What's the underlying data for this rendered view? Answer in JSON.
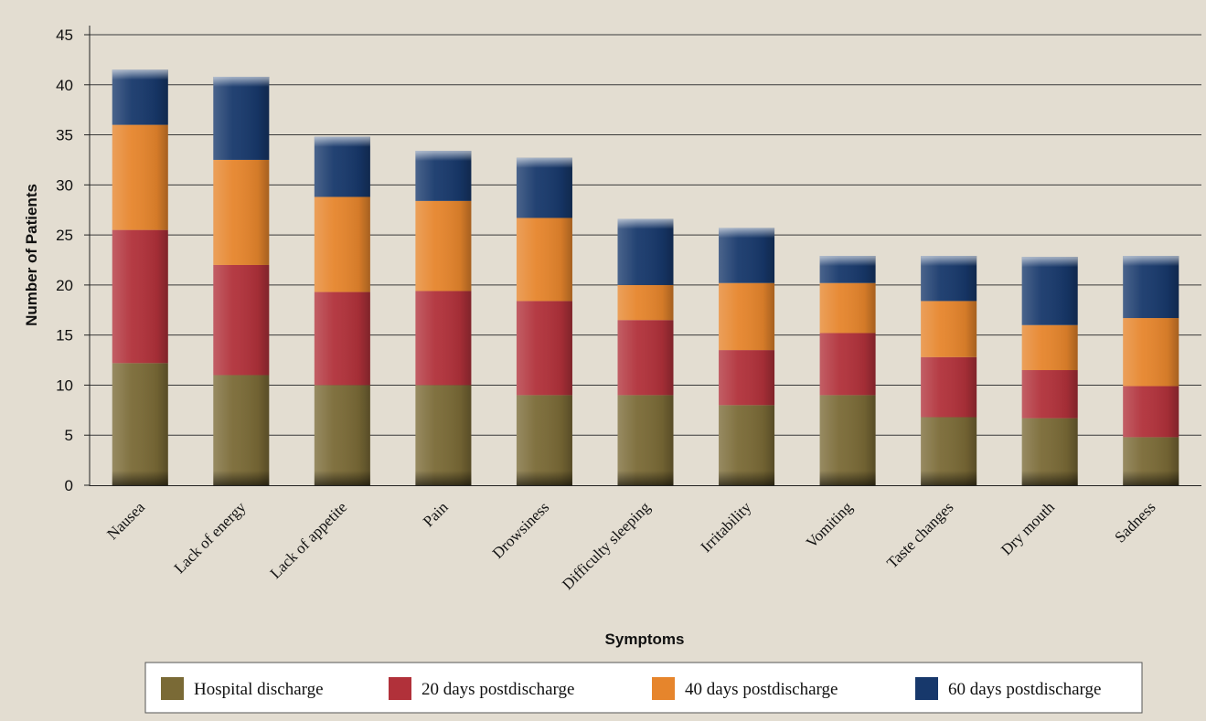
{
  "chart_data": {
    "type": "bar",
    "stacked": true,
    "title": "",
    "xlabel": "Symptoms",
    "ylabel": "Number of Patients",
    "ylim": [
      0,
      45
    ],
    "yticks": [
      0,
      5,
      10,
      15,
      20,
      25,
      30,
      35,
      40,
      45
    ],
    "grid": true,
    "legend_position": "bottom",
    "categories": [
      "Nausea",
      "Lack of energy",
      "Lack of appetite",
      "Pain",
      "Drowsiness",
      "Difficulty sleeping",
      "Irritability",
      "Vomiting",
      "Taste changes",
      "Dry mouth",
      "Sadness"
    ],
    "series": [
      {
        "name": "Hospital discharge",
        "color": "#7a6a36",
        "values": [
          12.2,
          11,
          10,
          10,
          9,
          9,
          8,
          9,
          6.8,
          6.7,
          4.8
        ]
      },
      {
        "name": "20 days postdischarge",
        "color": "#b1313a",
        "values": [
          13.3,
          11,
          9.3,
          9.4,
          9.4,
          7.5,
          5.5,
          6.2,
          6,
          4.8,
          5.1
        ]
      },
      {
        "name": "40 days postdischarge",
        "color": "#e6852c",
        "values": [
          10.5,
          10.5,
          9.5,
          9,
          8.3,
          3.5,
          6.7,
          5,
          5.6,
          4.5,
          6.8
        ]
      },
      {
        "name": "60 days postdischarge",
        "color": "#17386b",
        "values": [
          5.5,
          8.3,
          6,
          5,
          6,
          6.6,
          5.5,
          2.7,
          4.5,
          6.8,
          6.2
        ]
      }
    ]
  }
}
